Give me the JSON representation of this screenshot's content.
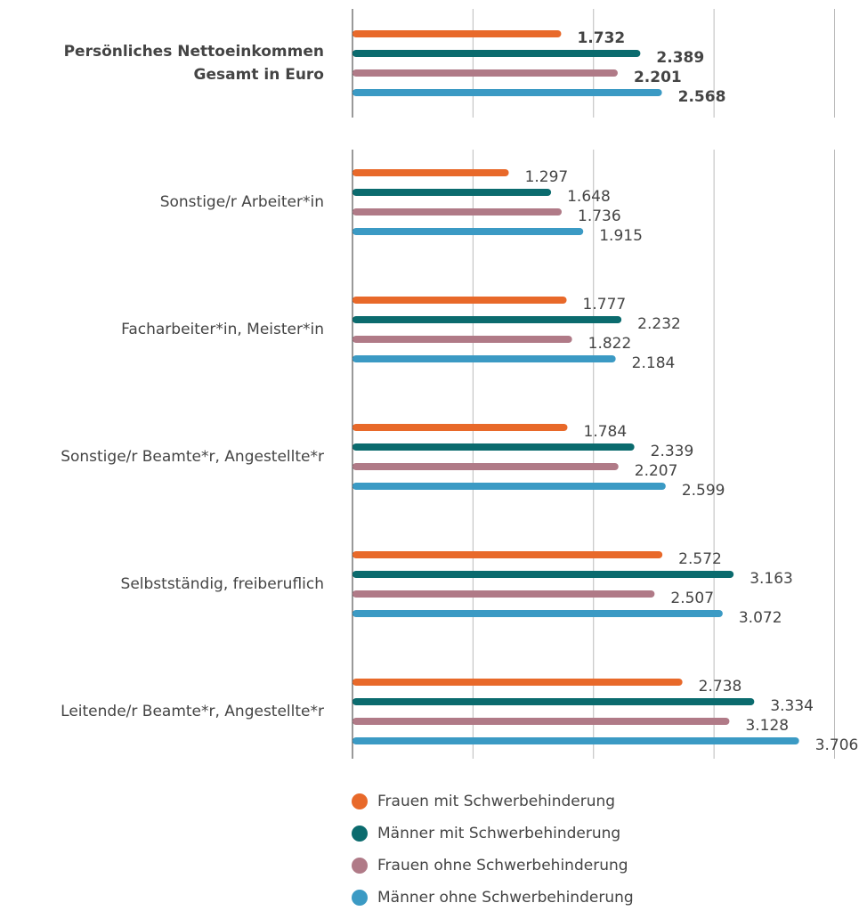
{
  "chart_data": {
    "type": "bar",
    "orientation": "horizontal",
    "categories": [
      "Persönliches Nettoeinkommen Gesamt in Euro",
      "Sonstige/r Arbeiter*in",
      "Facharbeiter*in, Meister*in",
      "Sonstige/r Beamte*r, Angestellte*r",
      "Selbstständig, freiberuflich",
      "Leitende/r Beamte*r, Angestellte*r"
    ],
    "series": [
      {
        "name": "Frauen mit Schwerbehinderung",
        "color": "#e8692a",
        "values": [
          1732,
          1297,
          1777,
          1784,
          2572,
          2738
        ],
        "value_labels": [
          "1.732",
          "1.297",
          "1.777",
          "1.784",
          "2.572",
          "2.738"
        ]
      },
      {
        "name": "Männer mit Schwerbehinderung",
        "color": "#0b6b6e",
        "values": [
          2389,
          1648,
          2232,
          2339,
          3163,
          3334
        ],
        "value_labels": [
          "2.389",
          "1.648",
          "2.232",
          "2.339",
          "3.163",
          "3.334"
        ]
      },
      {
        "name": "Frauen ohne Schwerbehinderung",
        "color": "#b07a87",
        "values": [
          2201,
          1736,
          1822,
          2207,
          2507,
          3128
        ],
        "value_labels": [
          "2.201",
          "1.736",
          "1.822",
          "2.207",
          "2.507",
          "3.128"
        ]
      },
      {
        "name": "Männer ohne Schwerbehinderung",
        "color": "#3b9ac4",
        "values": [
          2568,
          1915,
          2184,
          2599,
          3072,
          3706
        ],
        "value_labels": [
          "2.568",
          "1.915",
          "2.184",
          "2.599",
          "3.072",
          "3.706"
        ]
      }
    ],
    "xlim": [
      0,
      4000
    ],
    "xticks": [
      0,
      1000,
      2000,
      3000,
      4000
    ],
    "grid": true
  }
}
